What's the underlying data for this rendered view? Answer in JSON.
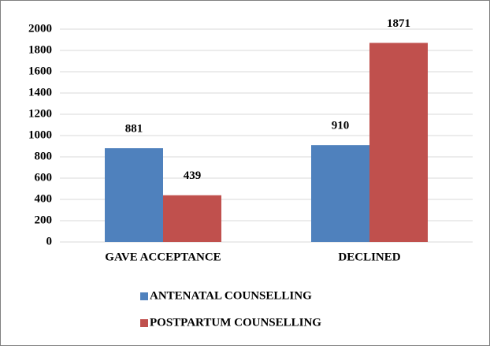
{
  "chart_data": {
    "type": "bar",
    "categories": [
      "GAVE ACCEPTANCE",
      "DECLINED"
    ],
    "series": [
      {
        "name": "ANTENATAL COUNSELLING",
        "color": "#4f81bd",
        "values": [
          881,
          910
        ]
      },
      {
        "name": "POSTPARTUM COUNSELLING",
        "color": "#c0504d",
        "values": [
          439,
          1871
        ]
      }
    ],
    "ylim": [
      0,
      2000
    ],
    "yticks": [
      0,
      200,
      400,
      600,
      800,
      1000,
      1200,
      1400,
      1600,
      1800,
      2000
    ],
    "grid": true,
    "legend": "bottom"
  }
}
